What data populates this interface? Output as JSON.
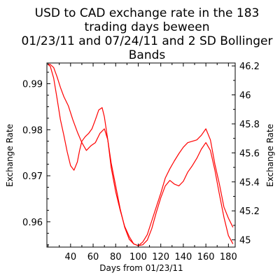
{
  "chart_data": {
    "type": "line",
    "title": [
      "USD to CAD exchange rate in the 183",
      "trading days beween",
      "01/23/11 and 07/24/11 and 2 SD Bollinger",
      "Bands"
    ],
    "xlabel": "Days from 01/23/11",
    "ylabel_left": "Exchange Rate",
    "ylabel_right": "Exchange Rate",
    "xlim": [
      19,
      186
    ],
    "ylim_left": [
      0.9545,
      0.9945
    ],
    "ylim_right": [
      44.95,
      46.22
    ],
    "x_ticks": [
      40,
      60,
      80,
      100,
      120,
      140,
      160,
      180
    ],
    "x_tick_labels": [
      "40",
      "60",
      "80",
      "100",
      "120",
      "140",
      "160",
      "180"
    ],
    "y_left_ticks": [
      0.96,
      0.97,
      0.98,
      0.99
    ],
    "y_left_tick_labels": [
      "0.96",
      "0.97",
      "0.98",
      "0.99"
    ],
    "y_right_ticks": [
      45,
      45.2,
      45.4,
      45.6,
      45.8,
      46,
      46.2
    ],
    "y_right_tick_labels": [
      "45",
      "45.2",
      "45.4",
      "45.6",
      "45.8",
      "46",
      "46.2"
    ],
    "grid": false,
    "line_color": "#ff0000",
    "series": [
      {
        "axis": "left",
        "x": [
          20,
          22,
          25,
          28,
          31,
          34,
          38,
          42,
          46,
          50,
          54,
          58,
          62,
          66,
          70,
          73,
          76,
          80,
          84,
          88,
          92,
          96,
          100,
          104,
          108,
          112,
          116,
          120,
          124,
          128,
          132,
          136,
          140,
          144,
          148,
          152,
          156,
          160,
          164,
          168,
          172,
          176,
          180,
          184
        ],
        "y": [
          0.9942,
          0.9942,
          0.9935,
          0.9915,
          0.9892,
          0.9872,
          0.9852,
          0.9822,
          0.9795,
          0.9772,
          0.9755,
          0.9765,
          0.9772,
          0.9792,
          0.9802,
          0.9778,
          0.9728,
          0.9678,
          0.9628,
          0.9588,
          0.9562,
          0.9552,
          0.9548,
          0.9556,
          0.9572,
          0.9602,
          0.9632,
          0.9662,
          0.9695,
          0.9715,
          0.9732,
          0.9748,
          0.9762,
          0.9772,
          0.9775,
          0.9778,
          0.9788,
          0.9802,
          0.9778,
          0.9725,
          0.9682,
          0.9632,
          0.9608,
          0.9588
        ]
      },
      {
        "axis": "left",
        "x": [
          20,
          22,
          25,
          28,
          31,
          34,
          37,
          40,
          43,
          46,
          48,
          50,
          53,
          56,
          59,
          62,
          65,
          68,
          70,
          73,
          76,
          80,
          84,
          88,
          92,
          96,
          100,
          104,
          108,
          112,
          116,
          120,
          124,
          128,
          132,
          136,
          140,
          144,
          148,
          152,
          156,
          160,
          164,
          168,
          172,
          176,
          180,
          184
        ],
        "y": [
          0.9942,
          0.9938,
          0.9912,
          0.9868,
          0.9822,
          0.9788,
          0.9752,
          0.9722,
          0.9712,
          0.973,
          0.9755,
          0.9775,
          0.9785,
          0.9792,
          0.9802,
          0.9822,
          0.9843,
          0.9848,
          0.9828,
          0.9778,
          0.9718,
          0.9665,
          0.9625,
          0.959,
          0.9568,
          0.9552,
          0.9548,
          0.955,
          0.956,
          0.9585,
          0.962,
          0.9652,
          0.9678,
          0.969,
          0.9682,
          0.9678,
          0.9688,
          0.9708,
          0.9722,
          0.9738,
          0.9758,
          0.9772,
          0.9755,
          0.9712,
          0.966,
          0.961,
          0.957,
          0.9552
        ]
      }
    ]
  }
}
